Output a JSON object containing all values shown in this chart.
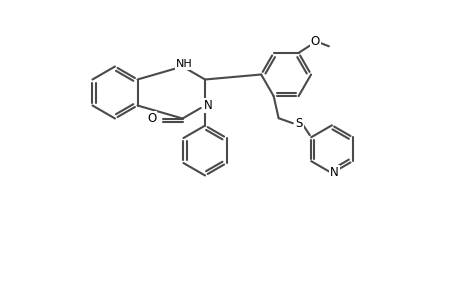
{
  "bg_color": "#ffffff",
  "lc": "#4a4a4a",
  "lw": 1.5,
  "figsize": [
    4.6,
    3.0
  ],
  "dpi": 100,
  "xlim": [
    0,
    9.2
  ],
  "ylim": [
    0,
    6.0
  ]
}
